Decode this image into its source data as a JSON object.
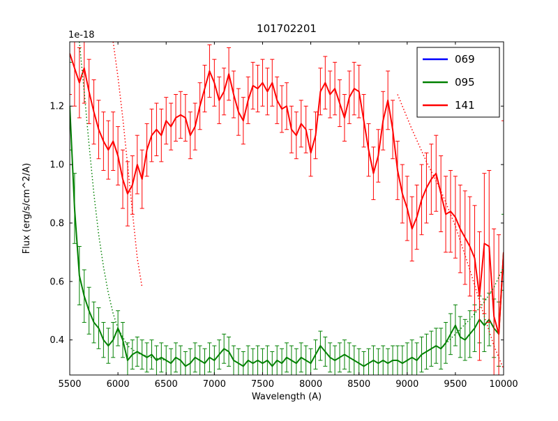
{
  "chart_data": {
    "type": "line",
    "title": "101702201",
    "xlabel": "Wavelength (A)",
    "ylabel": "Flux (erg/s/cm^2/A)",
    "offset_text": "1e-18",
    "xlim": [
      5500,
      10000
    ],
    "ylim": [
      0.28,
      1.42
    ],
    "grid": false,
    "xticks": [
      {
        "v": 5500,
        "label": "5500"
      },
      {
        "v": 6000,
        "label": "6000"
      },
      {
        "v": 6500,
        "label": "6500"
      },
      {
        "v": 7000,
        "label": "7000"
      },
      {
        "v": 7500,
        "label": "7500"
      },
      {
        "v": 8000,
        "label": "8000"
      },
      {
        "v": 8500,
        "label": "8500"
      },
      {
        "v": 9000,
        "label": "9000"
      },
      {
        "v": 9500,
        "label": "9500"
      },
      {
        "v": 10000,
        "label": "10000"
      }
    ],
    "yticks": [
      {
        "v": 0.4,
        "label": "0.4"
      },
      {
        "v": 0.6,
        "label": "0.6"
      },
      {
        "v": 0.8,
        "label": "0.8"
      },
      {
        "v": 1.0,
        "label": "1.0"
      },
      {
        "v": 1.2,
        "label": "1.2"
      }
    ],
    "legend": {
      "position": "upper right",
      "entries": [
        {
          "label": "069",
          "color": "#0000ff"
        },
        {
          "label": "095",
          "color": "#008000"
        },
        {
          "label": "141",
          "color": "#ff0000"
        }
      ]
    },
    "series": [
      {
        "name": "069",
        "color": "#0000ff",
        "style": "solid",
        "x": [],
        "y": []
      },
      {
        "name": "095",
        "color": "#008000",
        "style": "solid",
        "x_start": 5500,
        "x_step": 50,
        "y": [
          1.2,
          0.85,
          0.62,
          0.55,
          0.5,
          0.46,
          0.44,
          0.4,
          0.38,
          0.4,
          0.44,
          0.4,
          0.33,
          0.35,
          0.36,
          0.35,
          0.34,
          0.35,
          0.33,
          0.34,
          0.33,
          0.32,
          0.34,
          0.33,
          0.31,
          0.32,
          0.34,
          0.33,
          0.32,
          0.34,
          0.33,
          0.35,
          0.37,
          0.36,
          0.33,
          0.32,
          0.31,
          0.33,
          0.32,
          0.33,
          0.32,
          0.33,
          0.31,
          0.33,
          0.32,
          0.34,
          0.33,
          0.32,
          0.34,
          0.33,
          0.32,
          0.35,
          0.38,
          0.36,
          0.34,
          0.33,
          0.34,
          0.35,
          0.34,
          0.33,
          0.32,
          0.31,
          0.32,
          0.33,
          0.32,
          0.33,
          0.32,
          0.33,
          0.33,
          0.32,
          0.33,
          0.34,
          0.33,
          0.35,
          0.36,
          0.37,
          0.38,
          0.37,
          0.39,
          0.42,
          0.45,
          0.41,
          0.4,
          0.42,
          0.44,
          0.47,
          0.45,
          0.47,
          0.44,
          0.42,
          0.7
        ],
        "yerr": [
          0.15,
          0.12,
          0.1,
          0.09,
          0.08,
          0.07,
          0.07,
          0.06,
          0.06,
          0.06,
          0.06,
          0.06,
          0.06,
          0.05,
          0.05,
          0.05,
          0.05,
          0.05,
          0.05,
          0.05,
          0.05,
          0.05,
          0.05,
          0.05,
          0.05,
          0.05,
          0.05,
          0.05,
          0.05,
          0.05,
          0.05,
          0.05,
          0.05,
          0.05,
          0.05,
          0.05,
          0.05,
          0.05,
          0.05,
          0.05,
          0.05,
          0.05,
          0.05,
          0.05,
          0.05,
          0.05,
          0.05,
          0.05,
          0.05,
          0.05,
          0.05,
          0.05,
          0.05,
          0.05,
          0.05,
          0.05,
          0.05,
          0.05,
          0.05,
          0.05,
          0.05,
          0.05,
          0.05,
          0.05,
          0.05,
          0.05,
          0.05,
          0.05,
          0.05,
          0.06,
          0.06,
          0.06,
          0.06,
          0.06,
          0.06,
          0.06,
          0.06,
          0.07,
          0.07,
          0.07,
          0.07,
          0.07,
          0.07,
          0.08,
          0.08,
          0.08,
          0.09,
          0.09,
          0.1,
          0.11,
          0.13
        ]
      },
      {
        "name": "141",
        "color": "#ff0000",
        "style": "solid",
        "x_start": 5500,
        "x_step": 50,
        "y": [
          1.38,
          1.33,
          1.28,
          1.33,
          1.25,
          1.18,
          1.12,
          1.08,
          1.05,
          1.08,
          1.03,
          0.95,
          0.9,
          0.93,
          1.0,
          0.95,
          1.05,
          1.1,
          1.12,
          1.1,
          1.15,
          1.13,
          1.16,
          1.17,
          1.16,
          1.1,
          1.13,
          1.2,
          1.26,
          1.32,
          1.28,
          1.22,
          1.25,
          1.31,
          1.24,
          1.18,
          1.15,
          1.22,
          1.27,
          1.26,
          1.28,
          1.25,
          1.28,
          1.22,
          1.19,
          1.2,
          1.12,
          1.1,
          1.14,
          1.12,
          1.04,
          1.1,
          1.25,
          1.28,
          1.24,
          1.26,
          1.21,
          1.16,
          1.23,
          1.26,
          1.25,
          1.15,
          1.05,
          0.97,
          1.03,
          1.15,
          1.22,
          1.12,
          0.98,
          0.9,
          0.85,
          0.78,
          0.82,
          0.88,
          0.92,
          0.95,
          0.97,
          0.9,
          0.83,
          0.84,
          0.82,
          0.78,
          0.75,
          0.72,
          0.68,
          0.55,
          0.73,
          0.72,
          0.48,
          0.42,
          0.7
        ],
        "yerr": [
          0.14,
          0.13,
          0.12,
          0.12,
          0.11,
          0.11,
          0.1,
          0.1,
          0.1,
          0.1,
          0.1,
          0.1,
          0.11,
          0.1,
          0.1,
          0.1,
          0.09,
          0.09,
          0.09,
          0.09,
          0.08,
          0.08,
          0.08,
          0.08,
          0.08,
          0.08,
          0.08,
          0.08,
          0.08,
          0.09,
          0.08,
          0.08,
          0.08,
          0.09,
          0.08,
          0.08,
          0.08,
          0.08,
          0.08,
          0.08,
          0.08,
          0.08,
          0.08,
          0.08,
          0.08,
          0.08,
          0.08,
          0.08,
          0.08,
          0.08,
          0.08,
          0.08,
          0.08,
          0.09,
          0.08,
          0.09,
          0.08,
          0.08,
          0.09,
          0.09,
          0.09,
          0.09,
          0.09,
          0.09,
          0.09,
          0.1,
          0.1,
          0.1,
          0.1,
          0.1,
          0.11,
          0.11,
          0.11,
          0.12,
          0.12,
          0.12,
          0.13,
          0.13,
          0.13,
          0.14,
          0.14,
          0.15,
          0.16,
          0.17,
          0.18,
          0.22,
          0.24,
          0.26,
          0.3,
          0.34,
          0.45
        ]
      },
      {
        "name": "095-model-left",
        "color": "#008000",
        "style": "dotted",
        "x": [
          5600,
          5650,
          5700,
          5750,
          5800,
          5850,
          5900,
          5950,
          6000,
          6050,
          6100,
          6200,
          6350,
          6500
        ],
        "y": [
          1.42,
          1.25,
          1.07,
          0.9,
          0.76,
          0.65,
          0.56,
          0.49,
          0.44,
          0.41,
          0.38,
          0.355,
          0.34,
          0.33
        ]
      },
      {
        "name": "141-model-left",
        "color": "#ff0000",
        "style": "dotted",
        "x": [
          5950,
          6000,
          6050,
          6100,
          6150,
          6200,
          6250
        ],
        "y": [
          1.42,
          1.3,
          1.16,
          1.0,
          0.84,
          0.68,
          0.58
        ]
      },
      {
        "name": "141-model-right",
        "color": "#ff0000",
        "style": "dotted",
        "x": [
          8900,
          9050,
          9200,
          9350,
          9500,
          9650,
          9800,
          9900,
          10000
        ],
        "y": [
          1.24,
          1.12,
          1.01,
          0.91,
          0.79,
          0.64,
          0.48,
          0.38,
          0.3
        ]
      },
      {
        "name": "095-model-right",
        "color": "#008000",
        "style": "dotted",
        "x": [
          9350,
          9500,
          9650,
          9800,
          9900,
          10000
        ],
        "y": [
          0.37,
          0.42,
          0.47,
          0.53,
          0.58,
          0.65
        ]
      }
    ]
  }
}
